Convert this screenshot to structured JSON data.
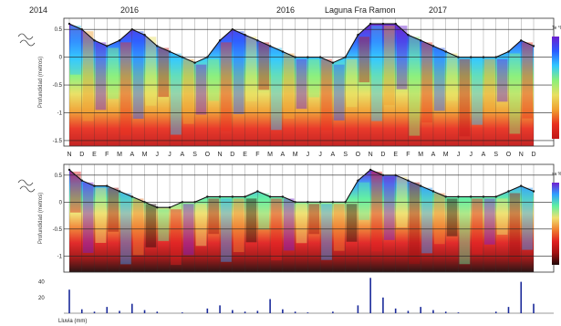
{
  "header": {
    "years": [
      "2014",
      "2016",
      "2016",
      "2017"
    ],
    "title": "Laguna Fra Ramon"
  },
  "months": [
    "N",
    "D",
    "E",
    "F",
    "M",
    "A",
    "M",
    "J",
    "J",
    "A",
    "S",
    "O",
    "N",
    "D",
    "E",
    "F",
    "M",
    "A",
    "M",
    "J",
    "J",
    "A",
    "S",
    "O",
    "N",
    "D",
    "E",
    "F",
    "M",
    "A",
    "M",
    "J",
    "J",
    "A",
    "S",
    "O",
    "N",
    "D"
  ],
  "chart_data": [
    {
      "type": "heatmap",
      "panel": "temperature",
      "ylabel": "Profundidad (metros)",
      "yticks": [
        "0.5",
        "0",
        "-0.5",
        "-1",
        "-1.5"
      ],
      "ylim": [
        -1.6,
        0.7
      ],
      "legend_label": "Te °C",
      "colorscale": [
        "#6a1fd0",
        "#2a5cff",
        "#30c8ff",
        "#8af07a",
        "#e8e060",
        "#f0a030",
        "#e83020",
        "#c01818"
      ],
      "surface_level": [
        0.6,
        0.5,
        0.3,
        0.2,
        0.3,
        0.5,
        0.4,
        0.2,
        0.1,
        0.0,
        -0.1,
        0.0,
        0.3,
        0.5,
        0.4,
        0.3,
        0.2,
        0.1,
        0.0,
        0.0,
        0.0,
        -0.1,
        0.0,
        0.4,
        0.6,
        0.6,
        0.6,
        0.4,
        0.3,
        0.2,
        0.1,
        0.0,
        0.0,
        0.0,
        0.0,
        0.1,
        0.3,
        0.2
      ]
    },
    {
      "type": "heatmap",
      "panel": "conductivity",
      "ylabel": "Profundidad (metros)",
      "yticks": [
        "0.5",
        "0",
        "-0.5",
        "-1"
      ],
      "ylim": [
        -1.3,
        0.7
      ],
      "legend_label": "sa %",
      "colorscale": [
        "#7020d0",
        "#30a0ff",
        "#60f0a0",
        "#f0e070",
        "#f08030",
        "#e02020",
        "#a01010",
        "#200808"
      ],
      "surface_level": [
        0.6,
        0.4,
        0.3,
        0.3,
        0.2,
        0.1,
        0.0,
        -0.1,
        -0.1,
        0.0,
        0.0,
        0.1,
        0.1,
        0.1,
        0.1,
        0.2,
        0.1,
        0.1,
        0.0,
        0.0,
        0.0,
        0.0,
        0.0,
        0.4,
        0.6,
        0.5,
        0.5,
        0.4,
        0.3,
        0.2,
        0.1,
        0.1,
        0.1,
        0.1,
        0.1,
        0.2,
        0.3,
        0.2
      ]
    },
    {
      "type": "bar",
      "panel": "rainfall",
      "xlabel": "Lluvia (mm)",
      "yticks": [
        "40",
        "20"
      ],
      "ylim": [
        0,
        50
      ],
      "values": [
        30,
        5,
        2,
        8,
        3,
        12,
        4,
        2,
        0,
        1,
        0,
        6,
        10,
        4,
        2,
        3,
        18,
        5,
        2,
        1,
        0,
        2,
        0,
        10,
        45,
        20,
        6,
        3,
        8,
        4,
        2,
        1,
        0,
        0,
        2,
        8,
        40,
        12
      ]
    }
  ]
}
